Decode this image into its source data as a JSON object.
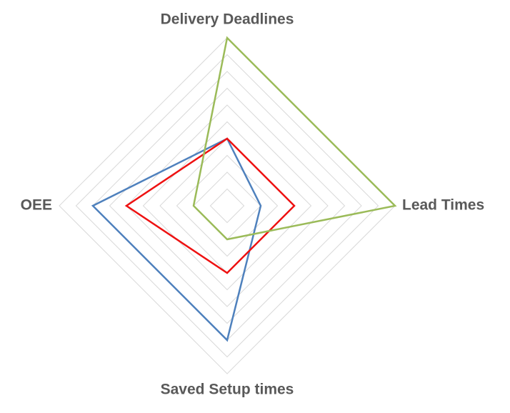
{
  "chart_data": {
    "type": "radar",
    "categories": [
      "Delivery Deadlines",
      "Lead Times",
      "Saved Setup times",
      "OEE"
    ],
    "series": [
      {
        "color": "#4f81bd",
        "values": [
          4,
          2,
          8,
          8
        ]
      },
      {
        "color": "#ee1111",
        "values": [
          4,
          4,
          4,
          6
        ]
      },
      {
        "color": "#9bbb59",
        "values": [
          10,
          10,
          2,
          2
        ]
      }
    ],
    "rlim": [
      0,
      10
    ],
    "rticks": [
      1,
      2,
      3,
      4,
      5,
      6,
      7,
      8,
      9,
      10
    ],
    "grid": true
  }
}
